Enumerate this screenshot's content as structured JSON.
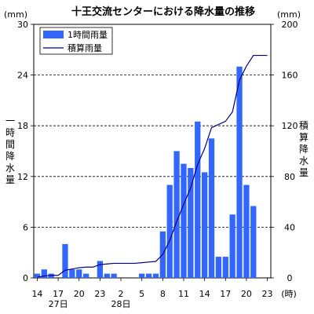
{
  "chart_data": {
    "type": "bar",
    "title": "十王交流センターにおける降水量の推移",
    "left_axis": {
      "unit": "(mm)",
      "label_chars": [
        "一",
        "時",
        "間",
        "降",
        "水",
        "量"
      ],
      "ylim": [
        0,
        30
      ],
      "ticks": [
        0,
        6,
        12,
        18,
        24,
        30
      ]
    },
    "right_axis": {
      "unit": "(mm)",
      "label_chars": [
        "積",
        "算",
        "降",
        "水",
        "量"
      ],
      "ylim": [
        0,
        200
      ],
      "ticks": [
        0,
        40,
        80,
        120,
        160,
        200
      ]
    },
    "x_tick_labels": [
      "14",
      "17",
      "20",
      "23",
      "2",
      "5",
      "8",
      "11",
      "14",
      "17",
      "20",
      "23"
    ],
    "x_unit": "(時)",
    "date_labels": [
      "27日",
      "28日"
    ],
    "grid": "horizontal dashed",
    "legend_position": "top-left",
    "series": [
      {
        "name": "1時間雨量",
        "type": "bar",
        "axis": "left",
        "color": "#3366ff",
        "values": [
          0.5,
          1,
          0.5,
          0,
          4,
          1,
          1,
          0.5,
          0,
          2,
          0.5,
          0.5,
          0,
          0,
          0,
          0.5,
          0.5,
          0.5,
          5.5,
          11,
          15,
          13.5,
          13,
          18.5,
          12.5,
          16.5,
          2.5,
          2.5,
          7.5,
          25,
          11,
          8.5,
          0,
          0
        ]
      },
      {
        "name": "積算雨量",
        "type": "line",
        "axis": "right",
        "color": "#000080",
        "values": [
          0.5,
          1.5,
          2,
          2,
          6,
          7,
          8,
          8.5,
          8.5,
          10.5,
          11,
          11.5,
          11.5,
          11.5,
          11.5,
          12,
          12.5,
          13,
          18.5,
          29.5,
          44.5,
          58,
          71,
          89.5,
          102,
          118.5,
          121,
          123.5,
          131,
          156,
          167,
          175.5,
          175.5,
          175.5
        ]
      }
    ]
  }
}
